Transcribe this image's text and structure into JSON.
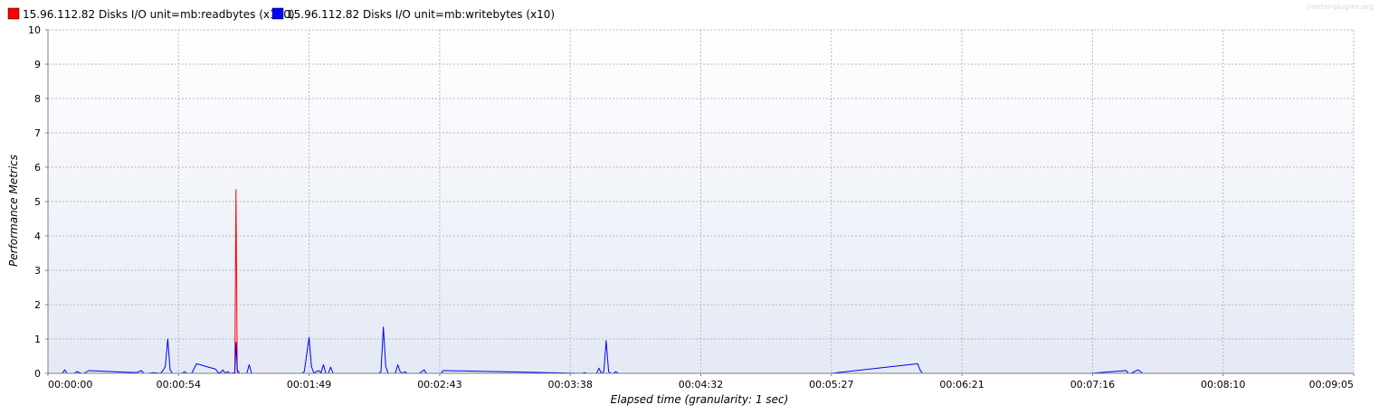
{
  "watermark": "jmeter-plugins.org",
  "colors": {
    "background_top": "#ffffff",
    "background_bottom": "#e4e9f5",
    "grid": "#b8b8b8"
  },
  "chart_data": {
    "type": "line",
    "xlabel": "Elapsed time (granularity: 1 sec)",
    "ylabel": "Performance Metrics",
    "ylim": [
      0,
      10
    ],
    "xlim_seconds": [
      0,
      545
    ],
    "yticks": [
      "0",
      "1",
      "2",
      "3",
      "4",
      "5",
      "6",
      "7",
      "8",
      "9",
      "10"
    ],
    "xticks": [
      "00:00:00",
      "00:00:54",
      "00:01:49",
      "00:02:43",
      "00:03:38",
      "00:04:32",
      "00:05:27",
      "00:06:21",
      "00:07:16",
      "00:08:10",
      "00:09:05"
    ],
    "grid": true,
    "legend_position": "top-left",
    "series": [
      {
        "name": "15.96.112.82 Disks I/O unit=mb:readbytes (x100)",
        "color": "#ff0000",
        "points": [
          [
            2,
            0
          ],
          [
            78,
            0
          ],
          [
            78.5,
            5.35
          ],
          [
            79,
            0
          ],
          [
            545,
            0
          ]
        ]
      },
      {
        "name": "15.96.112.82 Disks I/O unit=mb:writebytes (x10)",
        "color": "#0000ff",
        "points": [
          [
            2,
            0
          ],
          [
            6,
            0
          ],
          [
            7,
            0.1
          ],
          [
            8,
            0
          ],
          [
            11,
            0
          ],
          [
            12,
            0.05
          ],
          [
            14,
            0
          ],
          [
            15,
            0
          ],
          [
            17,
            0.08
          ],
          [
            37,
            0.02
          ],
          [
            39,
            0.08
          ],
          [
            40,
            0
          ],
          [
            42,
            0
          ],
          [
            44,
            0.02
          ],
          [
            47,
            0
          ],
          [
            48,
            0.08
          ],
          [
            49,
            0.2
          ],
          [
            50,
            1.0
          ],
          [
            51,
            0.1
          ],
          [
            52,
            0
          ],
          [
            54,
            0
          ],
          [
            56,
            0
          ],
          [
            57,
            0.05
          ],
          [
            58,
            0
          ],
          [
            60,
            0
          ],
          [
            62,
            0.28
          ],
          [
            70,
            0.12
          ],
          [
            71,
            0.02
          ],
          [
            72,
            0.02
          ],
          [
            73,
            0.1
          ],
          [
            74,
            0
          ],
          [
            75,
            0.05
          ],
          [
            76,
            0
          ],
          [
            78,
            0.02
          ],
          [
            78.5,
            0.9
          ],
          [
            79,
            0.1
          ],
          [
            80,
            0
          ],
          [
            82,
            0
          ],
          [
            83,
            0
          ],
          [
            84,
            0.25
          ],
          [
            85,
            0
          ],
          [
            88,
            0
          ],
          [
            95,
            0
          ],
          [
            106,
            0
          ],
          [
            107,
            0.05
          ],
          [
            109,
            1.05
          ],
          [
            110,
            0.2
          ],
          [
            111,
            0
          ],
          [
            112,
            0.05
          ],
          [
            113,
            0.08
          ],
          [
            114,
            0.02
          ],
          [
            115,
            0.25
          ],
          [
            116,
            0
          ],
          [
            117,
            0
          ],
          [
            118,
            0.18
          ],
          [
            119,
            0
          ],
          [
            121,
            0
          ],
          [
            124,
            0
          ],
          [
            125,
            0
          ],
          [
            138,
            0
          ],
          [
            139,
            0.05
          ],
          [
            140,
            1.35
          ],
          [
            141,
            0.2
          ],
          [
            142,
            0
          ],
          [
            145,
            0
          ],
          [
            146,
            0.25
          ],
          [
            147,
            0.05
          ],
          [
            148,
            0
          ],
          [
            149,
            0.05
          ],
          [
            150,
            0
          ],
          [
            152,
            0
          ],
          [
            153,
            0
          ],
          [
            154,
            0
          ],
          [
            155,
            0
          ],
          [
            156,
            0.05
          ],
          [
            157,
            0.1
          ],
          [
            158,
            0
          ],
          [
            160,
            0
          ],
          [
            164,
            0
          ],
          [
            165,
            0.08
          ],
          [
            166,
            0.08
          ],
          [
            223,
            0
          ],
          [
            224,
            0.02
          ],
          [
            225,
            0
          ],
          [
            229,
            0
          ],
          [
            230,
            0.15
          ],
          [
            231,
            0
          ],
          [
            232,
            0.05
          ],
          [
            233,
            0.95
          ],
          [
            234,
            0.05
          ],
          [
            235,
            0
          ],
          [
            236,
            0
          ],
          [
            237,
            0.05
          ],
          [
            238,
            0
          ],
          [
            240,
            0
          ],
          [
            300,
            0
          ],
          [
            327,
            0
          ],
          [
            363,
            0.28
          ],
          [
            364,
            0.1
          ],
          [
            365,
            0
          ],
          [
            435,
            0
          ],
          [
            450,
            0.08
          ],
          [
            451,
            0
          ],
          [
            452,
            0
          ],
          [
            455,
            0.1
          ],
          [
            456,
            0.05
          ],
          [
            457,
            0
          ],
          [
            545,
            0
          ]
        ]
      }
    ]
  }
}
